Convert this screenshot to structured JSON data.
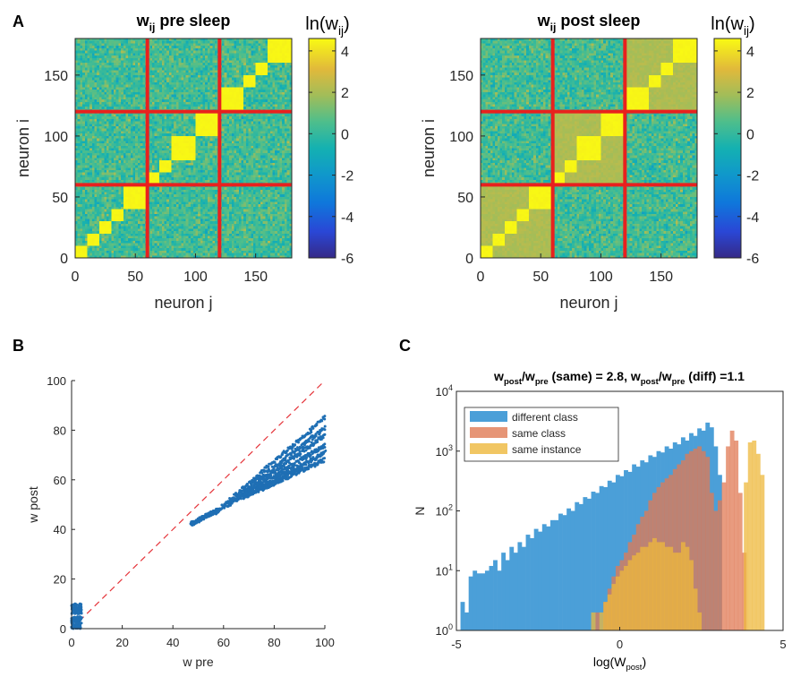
{
  "panel_labels": [
    "A",
    "B",
    "C"
  ],
  "chart_data": [
    {
      "type": "heatmap",
      "panel": "A",
      "title_main": "w",
      "title_sub": "ij",
      "title_rest": " pre sleep",
      "xlabel": "neuron j",
      "ylabel": "neuron i",
      "xlim": [
        0,
        180
      ],
      "ylim": [
        0,
        180
      ],
      "xticks": [
        0,
        50,
        100,
        150
      ],
      "yticks": [
        0,
        50,
        100,
        150
      ],
      "colorbar": {
        "label_main": "ln(w",
        "label_sub": "ij",
        "label_end": ")",
        "range": [
          -6,
          4.6
        ],
        "ticks": [
          4,
          2,
          0,
          -2,
          -4,
          -6
        ]
      },
      "class_boundaries": [
        60,
        120
      ],
      "bright_blocks": [
        [
          0,
          10
        ],
        [
          10,
          20
        ],
        [
          20,
          30
        ],
        [
          30,
          40
        ],
        [
          40,
          60
        ],
        [
          60,
          70
        ],
        [
          70,
          80
        ],
        [
          80,
          100
        ],
        [
          100,
          120
        ],
        [
          120,
          140
        ],
        [
          140,
          150
        ],
        [
          150,
          160
        ],
        [
          160,
          180
        ]
      ],
      "class_blocks_level": 0
    },
    {
      "type": "heatmap",
      "panel": "A",
      "title_main": "w",
      "title_sub": "ij",
      "title_rest": " post sleep",
      "xlabel": "neuron j",
      "ylabel": "neuron i",
      "xlim": [
        0,
        180
      ],
      "ylim": [
        0,
        180
      ],
      "xticks": [
        0,
        50,
        100,
        150
      ],
      "yticks": [
        0,
        50,
        100,
        150
      ],
      "colorbar": {
        "label_main": "ln(w",
        "label_sub": "ij",
        "label_end": ")",
        "range": [
          -6,
          4.6
        ],
        "ticks": [
          4,
          2,
          0,
          -2,
          -4,
          -6
        ]
      },
      "class_boundaries": [
        60,
        120
      ],
      "bright_blocks": [
        [
          0,
          10
        ],
        [
          10,
          20
        ],
        [
          20,
          30
        ],
        [
          30,
          40
        ],
        [
          40,
          60
        ],
        [
          60,
          70
        ],
        [
          70,
          80
        ],
        [
          80,
          100
        ],
        [
          100,
          120
        ],
        [
          120,
          140
        ],
        [
          140,
          150
        ],
        [
          150,
          160
        ],
        [
          160,
          180
        ]
      ],
      "class_blocks_level": 1.5
    },
    {
      "type": "scatter",
      "panel": "B",
      "xlabel": "w pre",
      "ylabel": "w post",
      "xlim": [
        0,
        100
      ],
      "ylim": [
        0,
        100
      ],
      "xticks": [
        0,
        20,
        40,
        60,
        80,
        100
      ],
      "yticks": [
        0,
        20,
        40,
        60,
        80,
        100
      ],
      "identity_line": {
        "x": [
          0,
          100
        ],
        "y": [
          0,
          100
        ],
        "color": "#e5343a",
        "style": "dashed"
      },
      "clusters": [
        {
          "x_range": [
            0,
            4
          ],
          "y_range": [
            0,
            10
          ]
        },
        {
          "x_range": [
            47,
            100
          ],
          "y_range": [
            42,
            85
          ]
        }
      ],
      "bands": [
        {
          "x": [
            57,
            100
          ],
          "y": [
            47,
            85
          ]
        },
        {
          "x": [
            60,
            100
          ],
          "y": [
            49,
            81
          ]
        },
        {
          "x": [
            62,
            100
          ],
          "y": [
            50,
            78
          ]
        },
        {
          "x": [
            65,
            100
          ],
          "y": [
            52,
            74
          ]
        },
        {
          "x": [
            68,
            100
          ],
          "y": [
            53,
            71
          ]
        },
        {
          "x": [
            70,
            100
          ],
          "y": [
            54,
            68
          ]
        },
        {
          "x": [
            47,
            58
          ],
          "y": [
            42,
            48
          ]
        }
      ],
      "color": "#1f6fb4"
    },
    {
      "type": "bar",
      "panel": "C",
      "title": "w_post/w_pre (same) = 2.8, w_post/w_pre (diff) =1.1",
      "title_parts": {
        "a": "w",
        "a_sub": "post",
        "b": "/w",
        "b_sub": "pre",
        "c": " (same) = 2.8, w",
        "c_sub": "post",
        "d": "/w",
        "d_sub": "pre",
        "e": " (diff) =1.1"
      },
      "xlabel_main": "log(W",
      "xlabel_sub": "post",
      "xlabel_end": ")",
      "ylabel": "N",
      "xlim": [
        -5,
        5
      ],
      "ylim_log": [
        1,
        10000
      ],
      "xticks": [
        -5,
        0,
        5
      ],
      "yticks_exp": [
        0,
        1,
        2,
        3,
        4
      ],
      "ytick_base": "10",
      "bin_width": 0.125,
      "legend": [
        "different class",
        "same class",
        "same instance"
      ],
      "legend_position": "upper left",
      "series": [
        {
          "name": "different class",
          "color": "#4b9fd8",
          "bin_start": -5.0,
          "values": [
            1,
            3,
            2,
            8,
            10,
            9,
            9,
            10,
            12,
            15,
            10,
            20,
            15,
            25,
            20,
            30,
            25,
            40,
            35,
            50,
            45,
            60,
            55,
            70,
            70,
            90,
            85,
            110,
            100,
            140,
            130,
            170,
            160,
            210,
            200,
            260,
            250,
            320,
            300,
            400,
            380,
            480,
            450,
            600,
            550,
            700,
            650,
            850,
            800,
            1000,
            950,
            1200,
            1100,
            1400,
            1300,
            1700,
            1500,
            2000,
            1800,
            2400,
            2200,
            3000,
            2500,
            1200,
            400,
            1
          ]
        },
        {
          "name": "same class",
          "color": "#e07a54",
          "bin_start": -1.0,
          "values": [
            1,
            1,
            2,
            1,
            3,
            5,
            8,
            12,
            15,
            20,
            30,
            40,
            60,
            80,
            100,
            150,
            200,
            250,
            300,
            350,
            400,
            500,
            600,
            700,
            900,
            1000,
            1100,
            1200,
            1000,
            800,
            200,
            100,
            150,
            300,
            1200,
            2200,
            1500,
            200,
            20,
            1
          ]
        },
        {
          "name": "same instance",
          "color": "#eeb83c",
          "bin_start": -1.0,
          "values": [
            1,
            2,
            1,
            2,
            3,
            4,
            6,
            8,
            10,
            12,
            15,
            18,
            20,
            25,
            25,
            30,
            35,
            30,
            30,
            25,
            25,
            20,
            20,
            30,
            25,
            15,
            5,
            2,
            1
          ]
        },
        {
          "name": "same instance (high)",
          "color": "#eeb83c",
          "bin_start": 3.8,
          "values": [
            300,
            1400,
            1500,
            900,
            400
          ]
        }
      ]
    }
  ]
}
